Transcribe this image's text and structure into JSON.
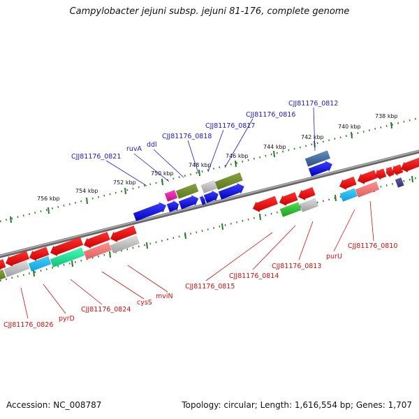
{
  "title": "Campylobacter jejuni subsp. jejuni 81-176, complete genome",
  "footer": {
    "accession": "Accession: NC_008787",
    "topology": "Topology: circular; Length: 1,616,554 bp; Genes: 1,707"
  },
  "colors": {
    "forward_label": "#1a1acc",
    "reverse_label": "#cc1111",
    "forward_gene": "#1010dd",
    "reverse_gene": "#ee1111",
    "backbone": "#888888",
    "tick": "#2a7a2a"
  },
  "scale_ticks": [
    "738 kbp",
    "740 kbp",
    "742 kbp",
    "744 kbp",
    "746 kbp",
    "748 kbp",
    "750 kbp",
    "752 kbp",
    "754 kbp",
    "756 kbp"
  ],
  "forward_labels": [
    "CJJ81176_0812",
    "CJJ81176_0816",
    "CJJ81176_0817",
    "CJJ81176_0818",
    "ddl",
    "ruvA",
    "CJJ81176_0821"
  ],
  "reverse_labels": [
    "CJJ81176_0810",
    "purU",
    "CJJ81176_0813",
    "CJJ81176_0814",
    "CJJ81176_0815",
    "mviN",
    "cysS",
    "CJJ81176_0824",
    "pyrD",
    "CJJ81176_0826"
  ]
}
